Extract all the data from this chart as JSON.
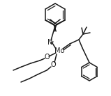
{
  "bg_color": "#ffffff",
  "line_color": "#1a1a1a",
  "lw": 1.1,
  "figsize": [
    1.59,
    1.38
  ],
  "dpi": 100,
  "xlim": [
    0,
    159
  ],
  "ylim": [
    138,
    0
  ]
}
